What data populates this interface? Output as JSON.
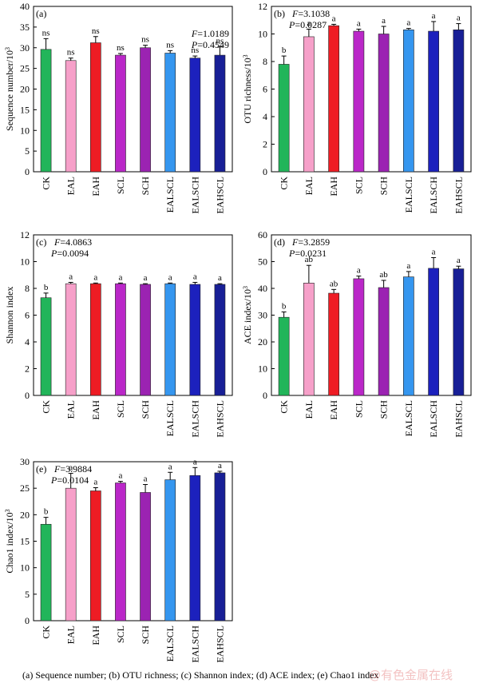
{
  "caption": "(a) Sequence number; (b) OTU richness; (c) Shannon index; (d) ACE index; (e) Chao1 index",
  "watermark": "@有色金属在线",
  "colors": [
    "#22b55a",
    "#f6a0c9",
    "#ee1c24",
    "#ba27c8",
    "#9b23b2",
    "#3596ef",
    "#1c21bd",
    "#181f96"
  ],
  "chart_data": [
    {
      "type": "bar",
      "panel": "(a)",
      "categories": [
        "CK",
        "EAL",
        "EAH",
        "SCL",
        "SCH",
        "EALSCL",
        "EALSCH",
        "EAHSCL"
      ],
      "values": [
        29.6,
        26.9,
        31.2,
        28.2,
        30.0,
        28.7,
        27.5,
        28.2
      ],
      "errors": [
        2.6,
        0.6,
        1.5,
        0.4,
        0.6,
        0.6,
        0.5,
        2.0
      ],
      "labels": [
        "ns",
        "ns",
        "ns",
        "ns",
        "ns",
        "ns",
        "ns",
        "ns"
      ],
      "ylabel": "Sequence number/10",
      "ylabel_sup": "3",
      "ylim": [
        0,
        40
      ],
      "yticks": [
        0,
        5,
        10,
        15,
        20,
        25,
        30,
        35,
        40
      ],
      "stat_f": "=1.0189",
      "stat_p": "=0.4549",
      "stats_position": "top-right"
    },
    {
      "type": "bar",
      "panel": "(b)",
      "categories": [
        "CK",
        "EAL",
        "EAH",
        "SCL",
        "SCH",
        "EALSCL",
        "EALSCH",
        "EAHSCL"
      ],
      "values": [
        7.8,
        9.8,
        10.6,
        10.2,
        10.0,
        10.3,
        10.2,
        10.3
      ],
      "errors": [
        0.6,
        0.55,
        0.1,
        0.15,
        0.55,
        0.1,
        0.7,
        0.45
      ],
      "labels": [
        "b",
        "a",
        "a",
        "a",
        "a",
        "a",
        "a",
        "a"
      ],
      "ylabel": "OTU richness/10",
      "ylabel_sup": "3",
      "ylim": [
        0,
        12
      ],
      "yticks": [
        0,
        2,
        4,
        6,
        8,
        10,
        12
      ],
      "stat_f": "=3.1038",
      "stat_p": "=0.0287",
      "stats_position": "top-left"
    },
    {
      "type": "bar",
      "panel": "(c)",
      "categories": [
        "CK",
        "EAL",
        "EAH",
        "SCL",
        "SCH",
        "EALSCL",
        "EALSCH",
        "EAHSCL"
      ],
      "values": [
        7.3,
        8.35,
        8.35,
        8.35,
        8.3,
        8.35,
        8.3,
        8.3
      ],
      "errors": [
        0.35,
        0.1,
        0.05,
        0.05,
        0.05,
        0.05,
        0.15,
        0.05
      ],
      "labels": [
        "b",
        "a",
        "a",
        "a",
        "a",
        "a",
        "a",
        "a"
      ],
      "ylabel": "Shannon index",
      "ylabel_sup": "",
      "ylim": [
        0,
        12
      ],
      "yticks": [
        0,
        2,
        4,
        6,
        8,
        10,
        12
      ],
      "stat_f": "=4.0863",
      "stat_p": "=0.0094",
      "stats_position": "top-left"
    },
    {
      "type": "bar",
      "panel": "(d)",
      "categories": [
        "CK",
        "EAL",
        "EAH",
        "SCL",
        "SCH",
        "EALSCL",
        "EALSCH",
        "EAHSCL"
      ],
      "values": [
        29.2,
        42.0,
        38.2,
        43.6,
        40.3,
        44.3,
        47.5,
        47.3
      ],
      "errors": [
        2.0,
        6.6,
        1.4,
        1.0,
        2.7,
        2.0,
        4.0,
        1.0
      ],
      "labels": [
        "b",
        "ab",
        "ab",
        "a",
        "ab",
        "a",
        "a",
        "a"
      ],
      "ylabel": "ACE index/10",
      "ylabel_sup": "3",
      "ylim": [
        0,
        60
      ],
      "yticks": [
        0,
        10,
        20,
        30,
        40,
        50,
        60
      ],
      "stat_f": "=3.2859",
      "stat_p": "=0.0231",
      "stats_position": "top-left"
    },
    {
      "type": "bar",
      "panel": "(e)",
      "categories": [
        "CK",
        "EAL",
        "EAH",
        "SCL",
        "SCH",
        "EALSCL",
        "EALSCH",
        "EAHSCL"
      ],
      "values": [
        18.2,
        25.0,
        24.5,
        26.0,
        24.2,
        26.6,
        27.4,
        27.9
      ],
      "errors": [
        1.3,
        2.8,
        0.6,
        0.3,
        1.5,
        1.4,
        1.5,
        0.3
      ],
      "labels": [
        "b",
        "a",
        "a",
        "a",
        "a",
        "a",
        "a",
        "a"
      ],
      "ylabel": "Chao1 index/10",
      "ylabel_sup": "3",
      "ylim": [
        0,
        30
      ],
      "yticks": [
        0,
        5,
        10,
        15,
        20,
        25,
        30
      ],
      "stat_f": "=3.9884",
      "stat_p": "=0.0104",
      "stats_position": "top-left"
    }
  ]
}
